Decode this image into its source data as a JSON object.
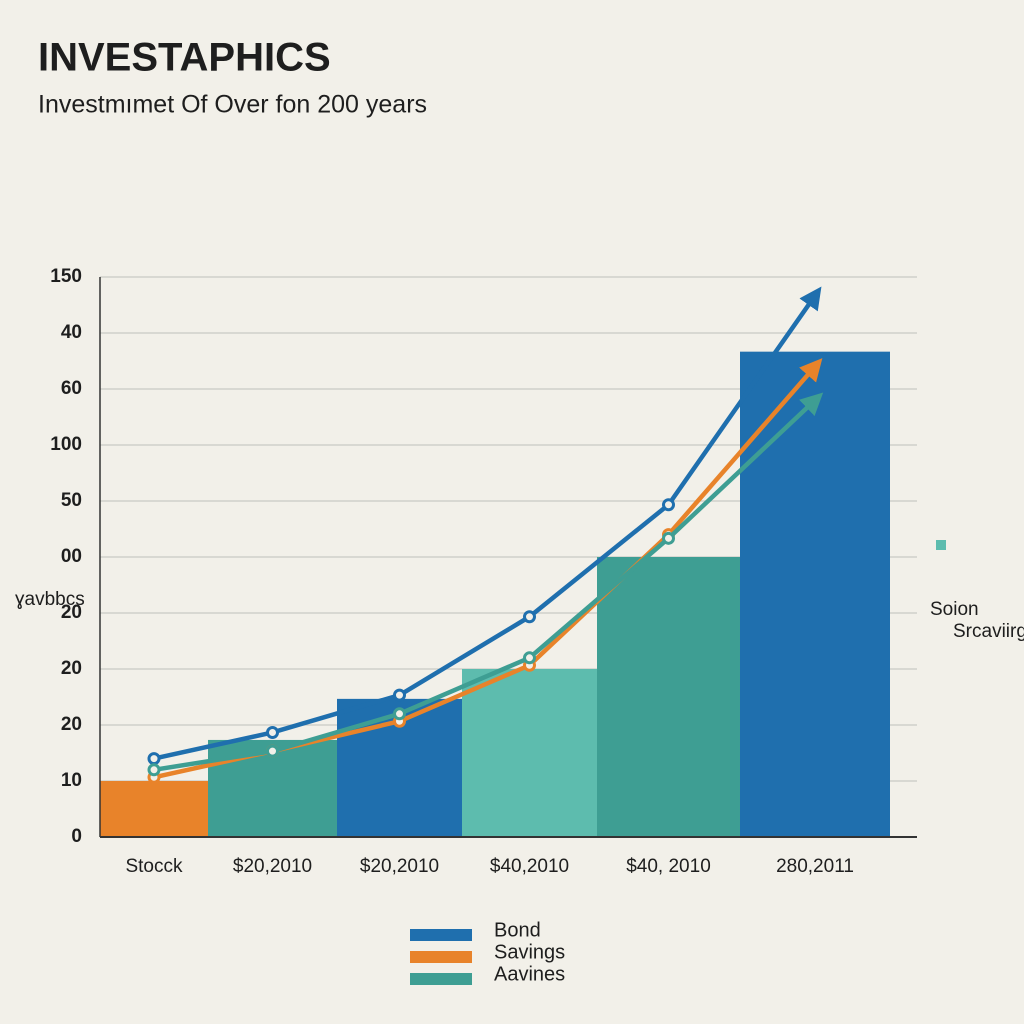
{
  "chart_data": {
    "type": "line",
    "title": "INVESTAPHICS",
    "subtitle": "Investmımet Of Over fon 200 years",
    "y_label": "ɣavbbcs",
    "annotation": [
      "Soion",
      "Srcaviirg"
    ],
    "categories": [
      "Stocck",
      "$20,2010",
      "$20,2010",
      "$40,2010",
      "$40, 2010",
      "280,2011"
    ],
    "ylim": [
      0,
      150
    ],
    "yticks": [
      0,
      {
        "value": 15,
        "label": "10"
      },
      {
        "value": 30,
        "label": "20"
      },
      {
        "value": 45,
        "label": "20"
      },
      {
        "value": 60,
        "label": "20"
      },
      {
        "value": 75,
        "label": "00"
      },
      {
        "value": 90,
        "label": "50"
      },
      {
        "value": 105,
        "label": "100"
      },
      {
        "value": 120,
        "label": "60"
      },
      {
        "value": 135,
        "label": "40"
      },
      150
    ],
    "grid": true,
    "bars": {
      "values": [
        15,
        26,
        37,
        45,
        75,
        130
      ],
      "colors": [
        "#e8832a",
        "#3e9e93",
        "#1f6fae",
        "#5dbcae",
        "#3e9e93",
        "#1f6fae"
      ]
    },
    "series": [
      {
        "name": "Bond",
        "color": "#1f6fae",
        "values": [
          21,
          28,
          38,
          59,
          89,
          145
        ]
      },
      {
        "name": "Savings",
        "color": "#e8832a",
        "values": [
          16,
          23,
          31,
          46,
          81,
          126
        ]
      },
      {
        "name": "Aavines",
        "color": "#3e9e93",
        "values": [
          18,
          23,
          33,
          48,
          80,
          117
        ]
      }
    ]
  }
}
